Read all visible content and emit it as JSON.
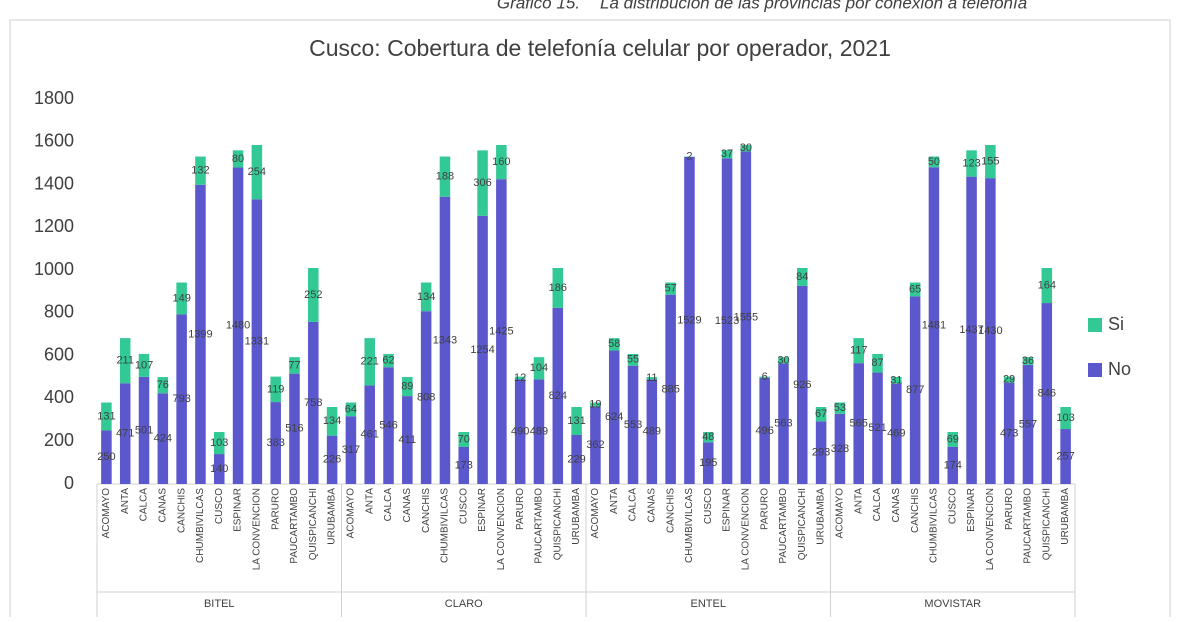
{
  "caption": {
    "label": "Gráfico 15.",
    "text": "La distribución de las provincias por conexión a telefonía"
  },
  "chart_data": {
    "type": "stacked_bar",
    "title": "Cusco: Cobertura de telefonía celular por operador, 2021",
    "groups": [
      "BITEL",
      "CLARO",
      "ENTEL",
      "MOVISTAR"
    ],
    "categories": [
      "ACOMAYO",
      "ANTA",
      "CALCA",
      "CANAS",
      "CANCHIS",
      "CHUMBIVILCAS",
      "CUSCO",
      "ESPINAR",
      "LA CONVENCION",
      "PARURO",
      "PAUCARTAMBO",
      "QUISPICANCHI",
      "URUBAMBA",
      "ACOMAYO",
      "ANTA",
      "CALCA",
      "CANAS",
      "CANCHIS",
      "CHUMBIVILCAS",
      "CUSCO",
      "ESPINAR",
      "LA CONVENCION",
      "PARURO",
      "PAUCARTAMBO",
      "QUISPICANCHI",
      "URUBAMBA",
      "ACOMAYO",
      "ANTA",
      "CALCA",
      "CANAS",
      "CANCHIS",
      "CHUMBIVILCAS",
      "CUSCO",
      "ESPINAR",
      "LA CONVENCION",
      "PARURO",
      "PAUCARTAMBO",
      "QUISPICANCHI",
      "URUBAMBA",
      "ACOMAYO",
      "ANTA",
      "CALCA",
      "CANAS",
      "CANCHIS",
      "CHUMBIVILCAS",
      "CUSCO",
      "ESPINAR",
      "LA CONVENCION",
      "PARURO",
      "PAUCARTAMBO",
      "QUISPICANCHI",
      "URUBAMBA"
    ],
    "series": [
      {
        "name": "No",
        "color": "#5b57cc",
        "values": [
          250,
          471,
          501,
          424,
          793,
          1399,
          140,
          1480,
          1331,
          383,
          516,
          758,
          226,
          317,
          461,
          546,
          411,
          808,
          1343,
          173,
          1254,
          1425,
          490,
          489,
          824,
          229,
          362,
          624,
          553,
          489,
          885,
          1529,
          195,
          1523,
          1555,
          496,
          563,
          926,
          293,
          328,
          565,
          521,
          469,
          877,
          1481,
          174,
          1437,
          1430,
          473,
          557,
          846,
          257
        ]
      },
      {
        "name": "Si",
        "color": "#33c994",
        "values": [
          131,
          211,
          107,
          76,
          149,
          132,
          103,
          80,
          254,
          119,
          77,
          252,
          134,
          64,
          221,
          62,
          89,
          134,
          188,
          70,
          306,
          160,
          12,
          104,
          186,
          131,
          19,
          58,
          55,
          11,
          57,
          2,
          48,
          37,
          30,
          6,
          30,
          84,
          67,
          53,
          117,
          87,
          31,
          65,
          50,
          69,
          123,
          155,
          29,
          36,
          164,
          103
        ]
      }
    ],
    "ylim": [
      0,
      1800
    ],
    "yticks": [
      0,
      200,
      400,
      600,
      800,
      1000,
      1200,
      1400,
      1600,
      1800
    ],
    "legend": "right"
  }
}
